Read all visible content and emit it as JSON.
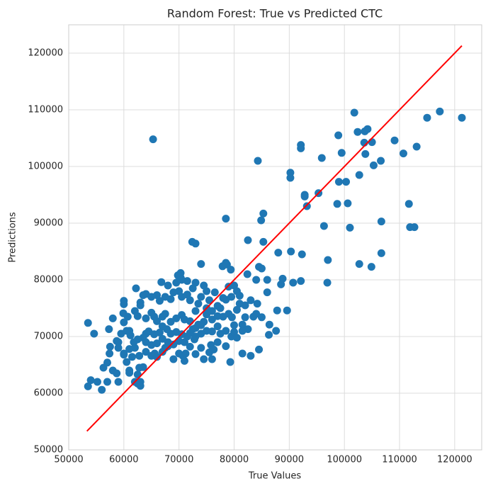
{
  "chart_data": {
    "type": "scatter",
    "title": "Random Forest: True vs Predicted CTC",
    "x_label": "True Values",
    "y_label": "Predictions",
    "xlim": [
      50000,
      124900
    ],
    "ylim": [
      50000,
      125000
    ],
    "xticks": [
      50000,
      60000,
      70000,
      80000,
      90000,
      100000,
      110000,
      120000
    ],
    "yticks": [
      50000,
      60000,
      70000,
      80000,
      90000,
      100000,
      110000,
      120000
    ],
    "grid": true,
    "x": [
      65300,
      84300,
      90200,
      90200,
      92100,
      92100,
      95900,
      101800,
      102400,
      103700,
      104200,
      103600,
      105000,
      98900,
      99500,
      103800,
      102700,
      105300,
      106600,
      109100,
      110700,
      113100,
      115000,
      117300,
      121300,
      99000,
      100300,
      98700,
      100600,
      92800,
      92800,
      93200,
      95300,
      96300,
      101000,
      106700,
      111700,
      111900,
      112700,
      97000,
      96900,
      102700,
      104900,
      106700,
      92300,
      90300,
      88800,
      90700,
      92100,
      85300,
      84900,
      85300,
      78500,
      82500,
      72400,
      73000,
      88000,
      84500,
      85000,
      86000,
      84000,
      86000,
      88500,
      87800,
      89600,
      86400,
      87600,
      86300,
      84500,
      83000,
      81500,
      79300,
      76000,
      78700,
      78500,
      79400,
      77900,
      82400,
      74000,
      70300,
      70300,
      69800,
      66800,
      62200,
      57300,
      53500,
      54600,
      53500,
      54000,
      55200,
      56000,
      57000,
      56300,
      57000,
      57400,
      58000,
      58700,
      59000,
      59000,
      60000,
      60000,
      59900,
      60700,
      61000,
      58000,
      57500,
      62000,
      62500,
      63000,
      63000,
      62500,
      61000,
      61000,
      60500,
      60000,
      61000,
      62000,
      63500,
      62800,
      64000,
      65000,
      65600,
      66000,
      67000,
      67500,
      68000,
      69000,
      70000,
      70700,
      71000,
      71200,
      72000,
      72800,
      73000,
      74000,
      74500,
      75500,
      75800,
      76300,
      77000,
      77500,
      78500,
      78500,
      79500,
      80000,
      80500,
      81500,
      82500,
      83500,
      84000,
      85000,
      84200,
      83000,
      82000,
      81000,
      80500,
      79500,
      78500,
      77000,
      76500,
      75500,
      74000,
      73500,
      73000,
      72000,
      71500,
      70500,
      70000,
      69000,
      68500,
      67500,
      66500,
      66000,
      65000,
      64000,
      63500,
      63000,
      63000,
      62000,
      62500,
      64000,
      65000,
      65500,
      66000,
      67000,
      67500,
      68500,
      69500,
      70500,
      71000,
      72000,
      72500,
      73500,
      74500,
      75000,
      76000,
      77000,
      78000,
      79000,
      79600,
      80500,
      81000,
      82000,
      81500,
      80000,
      77000,
      76000,
      75000,
      74000,
      73000,
      71500,
      70500,
      69500,
      68500,
      67800,
      67000,
      66500,
      65500,
      64500,
      64000,
      63500,
      62500,
      61800,
      61200,
      60500,
      60000,
      59500,
      58700,
      59000,
      60000,
      61500,
      62800,
      64000,
      65000,
      66000,
      67000,
      68000,
      69000,
      70000,
      71000,
      72000,
      73000,
      74000,
      75000,
      76000,
      77500,
      78000,
      79000,
      80000,
      74500,
      75000,
      72500,
      71500,
      70500,
      69500,
      68000,
      73000
    ],
    "series": [
      {
        "color": "#1f77b4",
        "values": [
          104800,
          101000,
          98900,
          98000,
          103800,
          103200,
          101500,
          109500,
          106100,
          106200,
          106600,
          104200,
          104300,
          105500,
          102400,
          102200,
          98500,
          100200,
          101000,
          104600,
          102300,
          103500,
          108600,
          109700,
          108600,
          97300,
          97300,
          93400,
          93500,
          95000,
          94700,
          93000,
          95300,
          89500,
          89200,
          90300,
          93400,
          89300,
          89300,
          83500,
          79500,
          82800,
          82300,
          84700,
          84500,
          85000,
          80200,
          79500,
          79800,
          91700,
          90500,
          86700,
          90800,
          87000,
          86700,
          86400,
          84800,
          82300,
          82000,
          80000,
          80000,
          77800,
          79200,
          74600,
          74600,
          72100,
          71000,
          70300,
          67700,
          66600,
          67000,
          65500,
          66000,
          82700,
          83000,
          81800,
          82400,
          81000,
          82800,
          81200,
          80400,
          80800,
          79600,
          78500,
          71300,
          72400,
          70500,
          61200,
          62300,
          62000,
          60600,
          62000,
          64500,
          65400,
          67000,
          64000,
          63500,
          62000,
          69000,
          76300,
          75700,
          74100,
          73500,
          71000,
          73200,
          68200,
          62000,
          61700,
          61300,
          62000,
          63300,
          63600,
          64000,
          65500,
          67000,
          67800,
          68000,
          64600,
          64500,
          67300,
          66600,
          67000,
          66400,
          67300,
          68000,
          68300,
          66000,
          67000,
          66600,
          65700,
          67000,
          68200,
          69500,
          66900,
          68000,
          66000,
          67200,
          68500,
          67700,
          69000,
          70500,
          68300,
          71000,
          70000,
          70800,
          69800,
          72100,
          71300,
          73500,
          74000,
          73400,
          75800,
          76400,
          75500,
          77200,
          78000,
          77000,
          76500,
          75400,
          77800,
          76400,
          77000,
          75800,
          74500,
          76400,
          77400,
          77000,
          78000,
          77800,
          76600,
          77000,
          76300,
          77300,
          77000,
          77500,
          77300,
          76000,
          75500,
          74500,
          73600,
          73200,
          74200,
          73500,
          72700,
          73500,
          74000,
          72600,
          73200,
          73800,
          73000,
          72700,
          71300,
          72100,
          72600,
          73900,
          73000,
          73600,
          73500,
          74000,
          73400,
          74700,
          75800,
          73400,
          71000,
          72000,
          71800,
          70900,
          71000,
          70500,
          70000,
          70000,
          70400,
          70800,
          70500,
          71300,
          71800,
          70700,
          70400,
          70900,
          70500,
          69800,
          69500,
          69000,
          70200,
          71000,
          72500,
          70500,
          69200,
          68000,
          66800,
          66400,
          66600,
          69000,
          68500,
          68800,
          69600,
          69000,
          68600,
          69200,
          69000,
          70600,
          71500,
          72000,
          75000,
          74500,
          75000,
          76800,
          78800,
          79000,
          79000,
          78000,
          78500,
          79800,
          80000,
          79500,
          79000,
          79500
        ]
      }
    ],
    "fit_line": {
      "color": "#ff0000",
      "x": [
        53300,
        121300
      ],
      "values": [
        53300,
        121300
      ]
    }
  }
}
